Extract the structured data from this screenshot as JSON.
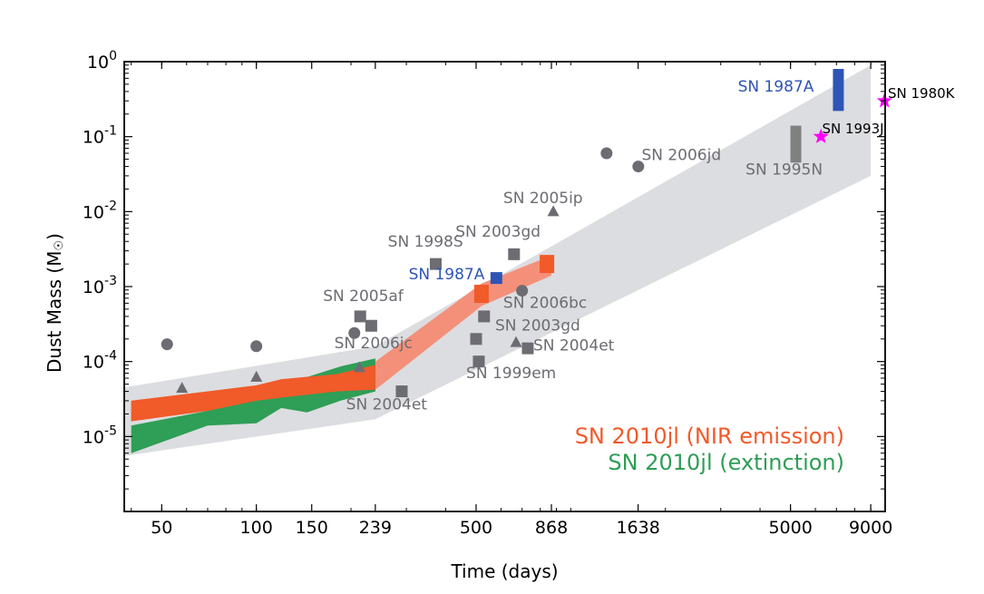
{
  "chart_data": {
    "type": "scatter",
    "title": "",
    "xlabel": "Time (days)",
    "ylabel": "Dust Mass (M",
    "ylabel_symbol": "☉",
    "ylabel_close": ")",
    "xscale": "log",
    "yscale": "log",
    "xlim": [
      38,
      10000
    ],
    "ylim": [
      1e-06,
      1
    ],
    "x_ticks": [
      {
        "value": 50,
        "label": "50"
      },
      {
        "value": 100,
        "label": "100"
      },
      {
        "value": 150,
        "label": "150"
      },
      {
        "value": 239,
        "label": "239"
      },
      {
        "value": 500,
        "label": "500"
      },
      {
        "value": 868,
        "label": "868"
      },
      {
        "value": 1638,
        "label": "1638"
      },
      {
        "value": 5000,
        "label": "5000"
      },
      {
        "value": 9000,
        "label": "9000"
      }
    ],
    "y_ticks": [
      {
        "value": 1e-05,
        "base": "10",
        "exp": "-5"
      },
      {
        "value": 0.0001,
        "base": "10",
        "exp": "-4"
      },
      {
        "value": 0.001,
        "base": "10",
        "exp": "-3"
      },
      {
        "value": 0.01,
        "base": "10",
        "exp": "-2"
      },
      {
        "value": 0.1,
        "base": "10",
        "exp": "-1"
      },
      {
        "value": 1,
        "base": "10",
        "exp": "0"
      }
    ],
    "grid": false,
    "legend_position": "bottom-right",
    "colors": {
      "band": "#dcdde0",
      "nir": "#f15a29",
      "nir_light": "#f4907a",
      "extinction": "#2f9e56",
      "marker_grey": "#6c6c72",
      "blue": "#2e55b6",
      "magenta": "#ff00ff"
    },
    "band": [
      {
        "x": 38,
        "low": 5.5e-06,
        "high": 4.5e-05
      },
      {
        "x": 239,
        "low": 1.7e-05,
        "high": 0.00016
      },
      {
        "x": 9000,
        "low": 0.03,
        "high": 0.9
      }
    ],
    "series": [
      {
        "name": "SN 2010jl (NIR emission)",
        "kind": "band",
        "points": [
          {
            "x": 40,
            "low": 1.6e-05,
            "high": 3e-05
          },
          {
            "x": 70,
            "low": 2.2e-05,
            "high": 4e-05
          },
          {
            "x": 100,
            "low": 3e-05,
            "high": 4.8e-05
          },
          {
            "x": 120,
            "low": 3.3e-05,
            "high": 5.8e-05
          },
          {
            "x": 180,
            "low": 4e-05,
            "high": 6.8e-05
          },
          {
            "x": 239,
            "low": 4.2e-05,
            "high": 9e-05
          }
        ]
      },
      {
        "name": "SN 2010jl (NIR emission)",
        "kind": "band-extended",
        "points": [
          {
            "x": 239,
            "low": 4.2e-05,
            "high": 0.0001
          },
          {
            "x": 520,
            "low": 0.00055,
            "high": 0.0011
          },
          {
            "x": 868,
            "low": 0.0014,
            "high": 0.0026
          }
        ]
      },
      {
        "name": "SN 2010jl (extinction)",
        "kind": "band",
        "points": [
          {
            "x": 40,
            "low": 6e-06,
            "high": 1.4e-05
          },
          {
            "x": 70,
            "low": 1.4e-05,
            "high": 2.2e-05
          },
          {
            "x": 100,
            "low": 1.5e-05,
            "high": 3.3e-05
          },
          {
            "x": 120,
            "low": 2.4e-05,
            "high": 4.6e-05
          },
          {
            "x": 145,
            "low": 2.1e-05,
            "high": 6.2e-05
          },
          {
            "x": 185,
            "low": 3e-05,
            "high": 8.6e-05
          },
          {
            "x": 239,
            "low": 4e-05,
            "high": 0.00011
          }
        ]
      }
    ],
    "nir_squares": [
      {
        "x": 520,
        "y": 0.0008
      },
      {
        "x": 840,
        "y": 0.002
      }
    ],
    "points": [
      {
        "shape": "circle",
        "x": 52,
        "y": 0.00017,
        "color": "grey"
      },
      {
        "shape": "circle",
        "x": 100,
        "y": 0.00016,
        "color": "grey"
      },
      {
        "shape": "circle",
        "x": 205,
        "y": 0.00024,
        "color": "grey"
      },
      {
        "shape": "circle",
        "x": 700,
        "y": 0.00088,
        "color": "grey"
      },
      {
        "shape": "circle",
        "x": 1300,
        "y": 0.06,
        "color": "grey"
      },
      {
        "shape": "circle",
        "x": 1640,
        "y": 0.04,
        "color": "grey"
      },
      {
        "shape": "triangle",
        "x": 58,
        "y": 4.4e-05,
        "color": "grey"
      },
      {
        "shape": "triangle",
        "x": 100,
        "y": 6.2e-05,
        "color": "grey"
      },
      {
        "shape": "triangle",
        "x": 213,
        "y": 8.3e-05,
        "color": "grey"
      },
      {
        "shape": "triangle",
        "x": 670,
        "y": 0.00018,
        "color": "grey"
      },
      {
        "shape": "triangle",
        "x": 880,
        "y": 0.01,
        "color": "grey"
      },
      {
        "shape": "square",
        "x": 214,
        "y": 0.0004,
        "color": "grey"
      },
      {
        "shape": "square",
        "x": 232,
        "y": 0.0003,
        "color": "grey"
      },
      {
        "shape": "square",
        "x": 290,
        "y": 4e-05,
        "color": "grey"
      },
      {
        "shape": "square",
        "x": 372,
        "y": 0.002,
        "color": "grey"
      },
      {
        "shape": "square",
        "x": 500,
        "y": 0.0002,
        "color": "grey"
      },
      {
        "shape": "square",
        "x": 510,
        "y": 0.0001,
        "color": "grey"
      },
      {
        "shape": "square",
        "x": 530,
        "y": 0.0004,
        "color": "grey"
      },
      {
        "shape": "square",
        "x": 660,
        "y": 0.0027,
        "color": "grey"
      },
      {
        "shape": "square",
        "x": 730,
        "y": 0.00015,
        "color": "grey"
      },
      {
        "shape": "square",
        "x": 580,
        "y": 0.0013,
        "color": "blue"
      },
      {
        "shape": "star",
        "x": 6250,
        "y": 0.1,
        "color": "magenta"
      },
      {
        "shape": "star",
        "x": 9950,
        "y": 0.3,
        "color": "magenta"
      }
    ],
    "bars": [
      {
        "x": 5200,
        "low": 0.045,
        "high": 0.14,
        "color": "grey"
      },
      {
        "x": 7100,
        "low": 0.22,
        "high": 0.8,
        "color": "blue"
      }
    ],
    "annotations": [
      {
        "text": "SN 2006jd",
        "x": 1680,
        "y": 0.049,
        "style": "grey",
        "anchor": "start"
      },
      {
        "text": "SN 2005ip",
        "x": 610,
        "y": 0.013,
        "style": "grey",
        "anchor": "start"
      },
      {
        "text": "SN 2003gd",
        "x": 430,
        "y": 0.0046,
        "style": "grey",
        "anchor": "start"
      },
      {
        "text": "SN 1998S",
        "x": 262,
        "y": 0.0034,
        "style": "grey",
        "anchor": "start"
      },
      {
        "text": "SN 1987A",
        "x": 305,
        "y": 0.00125,
        "style": "blue",
        "anchor": "start"
      },
      {
        "text": "SN 2005af",
        "x": 163,
        "y": 0.00064,
        "style": "grey",
        "anchor": "start"
      },
      {
        "text": "SN 2006bc",
        "x": 610,
        "y": 0.00052,
        "style": "grey",
        "anchor": "start"
      },
      {
        "text": "SN 2003gd",
        "x": 575,
        "y": 0.00026,
        "style": "grey",
        "anchor": "start"
      },
      {
        "text": "SN 2006jc",
        "x": 177,
        "y": 0.00015,
        "style": "grey",
        "anchor": "start"
      },
      {
        "text": "SN 2004et",
        "x": 760,
        "y": 0.00014,
        "style": "grey",
        "anchor": "start"
      },
      {
        "text": "SN 1999em",
        "x": 465,
        "y": 6e-05,
        "style": "grey",
        "anchor": "start"
      },
      {
        "text": "SN 2004et",
        "x": 193,
        "y": 2.3e-05,
        "style": "grey",
        "anchor": "start"
      },
      {
        "text": "SN 1995N",
        "x": 3600,
        "y": 0.031,
        "style": "grey",
        "anchor": "start"
      },
      {
        "text": "SN 1987A",
        "x": 3400,
        "y": 0.4,
        "style": "blue",
        "anchor": "start"
      },
      {
        "text": "SN 1993J",
        "x": 6300,
        "y": 0.11,
        "style": "black",
        "anchor": "start"
      },
      {
        "text": "SN 1980K",
        "x": 10200,
        "y": 0.33,
        "style": "black",
        "anchor": "start"
      }
    ],
    "legend": [
      {
        "label": "SN 2010jl (NIR emission)",
        "color": "#f15a29"
      },
      {
        "label": "SN 2010jl (extinction)",
        "color": "#2f9e56"
      }
    ]
  }
}
